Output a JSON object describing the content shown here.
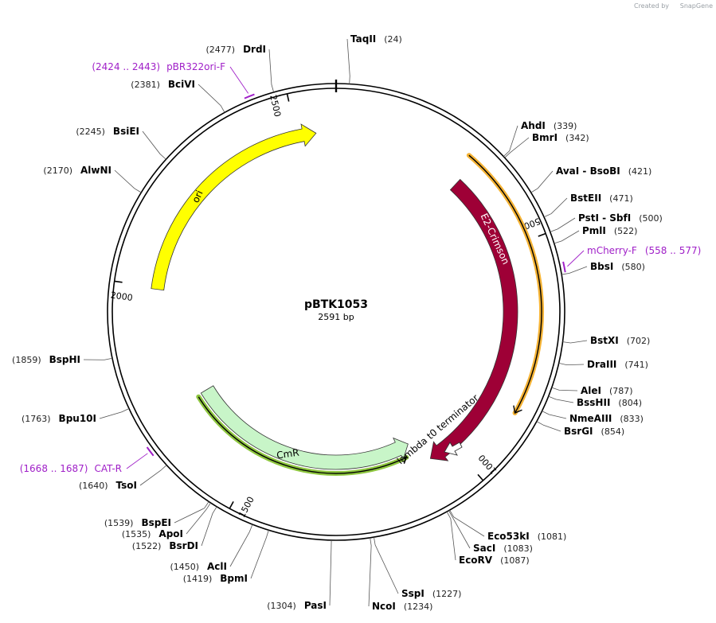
{
  "plasmid": {
    "name": "pBTK1053",
    "length_label": "2591 bp",
    "length": 2591
  },
  "credit": {
    "prefix": "Created by",
    "brand": "SnapGene"
  },
  "ticks": [
    {
      "pos": 500,
      "label": "500"
    },
    {
      "pos": 1000,
      "label": "1000"
    },
    {
      "pos": 1500,
      "label": "1500"
    },
    {
      "pos": 2000,
      "label": "2000"
    },
    {
      "pos": 2500,
      "label": "2500"
    }
  ],
  "features": [
    {
      "name": "E2-Crimson",
      "label": "E2-Crimson",
      "start": 310,
      "end": 1060,
      "color": "#9e0036",
      "text_color": "#ffffff",
      "strand": 1
    },
    {
      "name": "ori",
      "label": "ori",
      "start": 1995,
      "end": 2545,
      "color": "#ffff00",
      "text_color": "#000000",
      "strand": 1
    },
    {
      "name": "CmR",
      "label": "CmR",
      "start": 1090,
      "end": 1720,
      "color": "#c8f5c8",
      "text_color": "#000000",
      "strand": -1
    },
    {
      "name": "lambda t0 terminator",
      "label": "lambda t0 terminator",
      "start": 1040,
      "end": 1090,
      "color": "#ffffff",
      "text_color": "#000000",
      "strand": 1
    }
  ],
  "highlight_arcs": [
    {
      "name": "orange-orf",
      "start": 290,
      "end": 860,
      "color": "#f5b335",
      "strand": 1
    },
    {
      "name": "green-orf",
      "start": 1110,
      "end": 1715,
      "color": "#8ec63f",
      "strand": -1
    }
  ],
  "primers": [
    {
      "name": "pBR322ori-F",
      "label": "pBR322ori-F",
      "range": "(2424 .. 2443)",
      "start": 2424,
      "end": 2443
    },
    {
      "name": "mCherry-F",
      "label": "mCherry-F",
      "range": "(558 .. 577)",
      "start": 558,
      "end": 577
    },
    {
      "name": "CAT-R",
      "label": "CAT-R",
      "range": "(1668 .. 1687)",
      "start": 1668,
      "end": 1687
    }
  ],
  "sites": [
    {
      "name": "TaqII",
      "pos": "(24)",
      "bp": 24
    },
    {
      "name": "AhdI",
      "pos": "(339)",
      "bp": 339
    },
    {
      "name": "BmrI",
      "pos": "(342)",
      "bp": 342
    },
    {
      "name": "AvaI  -  BsoBI",
      "pos": "(421)",
      "bp": 421
    },
    {
      "name": "BstEII",
      "pos": "(471)",
      "bp": 471
    },
    {
      "name": "PstI  -  SbfI",
      "pos": "(500)",
      "bp": 500
    },
    {
      "name": "PmlI",
      "pos": "(522)",
      "bp": 522
    },
    {
      "name": "BbsI",
      "pos": "(580)",
      "bp": 580
    },
    {
      "name": "BstXI",
      "pos": "(702)",
      "bp": 702
    },
    {
      "name": "DraIII",
      "pos": "(741)",
      "bp": 741
    },
    {
      "name": "AleI",
      "pos": "(787)",
      "bp": 787
    },
    {
      "name": "BssHII",
      "pos": "(804)",
      "bp": 804
    },
    {
      "name": "NmeAIII",
      "pos": "(833)",
      "bp": 833
    },
    {
      "name": "BsrGI",
      "pos": "(854)",
      "bp": 854
    },
    {
      "name": "Eco53kI",
      "pos": "(1081)",
      "bp": 1081
    },
    {
      "name": "SacI",
      "pos": "(1083)",
      "bp": 1083
    },
    {
      "name": "EcoRV",
      "pos": "(1087)",
      "bp": 1087
    },
    {
      "name": "SspI",
      "pos": "(1227)",
      "bp": 1227
    },
    {
      "name": "NcoI",
      "pos": "(1234)",
      "bp": 1234
    },
    {
      "name": "PasI",
      "pos": "(1304)",
      "bp": 1304
    },
    {
      "name": "BpmI",
      "pos": "(1419)",
      "bp": 1419
    },
    {
      "name": "AclI",
      "pos": "(1450)",
      "bp": 1450
    },
    {
      "name": "BsrDI",
      "pos": "(1522)",
      "bp": 1522
    },
    {
      "name": "ApoI",
      "pos": "(1535)",
      "bp": 1535
    },
    {
      "name": "BspEI",
      "pos": "(1539)",
      "bp": 1539
    },
    {
      "name": "TsoI",
      "pos": "(1640)",
      "bp": 1640
    },
    {
      "name": "Bpu10I",
      "pos": "(1763)",
      "bp": 1763
    },
    {
      "name": "BspHI",
      "pos": "(1859)",
      "bp": 1859
    },
    {
      "name": "AlwNI",
      "pos": "(2170)",
      "bp": 2170
    },
    {
      "name": "BsiEI",
      "pos": "(2245)",
      "bp": 2245
    },
    {
      "name": "BciVI",
      "pos": "(2381)",
      "bp": 2381
    },
    {
      "name": "DrdI",
      "pos": "(2477)",
      "bp": 2477
    }
  ]
}
